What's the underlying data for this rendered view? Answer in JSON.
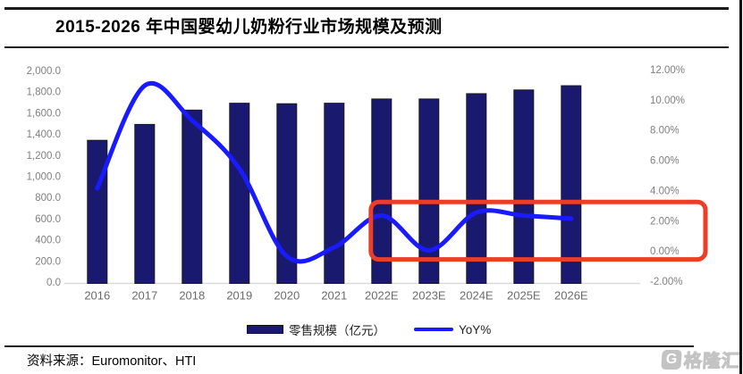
{
  "chart_data": {
    "type": "bar",
    "title": "2015-2026 年中国婴幼儿奶粉行业市场规模及预测",
    "categories": [
      "2016",
      "2017",
      "2018",
      "2019",
      "2020",
      "2021",
      "2022E",
      "2023E",
      "2024E",
      "2025E",
      "2026E"
    ],
    "series": [
      {
        "name": "零售规模（亿元）",
        "chart_type": "bar",
        "axis": "left",
        "color": "#191970",
        "values": [
          1350,
          1500,
          1635,
          1700,
          1695,
          1700,
          1740,
          1740,
          1790,
          1825,
          1865
        ]
      },
      {
        "name": "YoY%",
        "chart_type": "line",
        "axis": "right",
        "color": "#1A1AFF",
        "values": [
          4.2,
          11.0,
          8.7,
          5.5,
          -0.3,
          0.3,
          2.4,
          0.1,
          2.6,
          2.4,
          2.2
        ]
      }
    ],
    "left_axis": {
      "min": 0,
      "max": 2000,
      "step": 200,
      "tick_labels": [
        "2,000.0",
        "1,800.0",
        "1,600.0",
        "1,400.0",
        "1,200.0",
        "1,000.0",
        "800.0",
        "600.0",
        "400.0",
        "200.0",
        "0.0"
      ]
    },
    "right_axis": {
      "min": -2,
      "max": 12,
      "step": 2,
      "tick_labels": [
        "12.00%",
        "10.00%",
        "8.00%",
        "6.00%",
        "4.00%",
        "2.00%",
        "0.00%",
        "-2.00%"
      ]
    },
    "grid": false,
    "legend_position": "bottom",
    "annotation": {
      "shape": "rounded-rect",
      "color": "#EA3E27",
      "purpose": "highlight",
      "from_category": "2022E",
      "covers_right_axis_labels": [
        "2.00%",
        "0.00%"
      ],
      "y_top_pct": 3.3,
      "y_bottom_pct": -0.5
    }
  },
  "source": {
    "label": "资料来源：",
    "value": "Euromonitor、HTI"
  },
  "watermark": {
    "brand": "格隆汇",
    "icon_letter": "G"
  }
}
